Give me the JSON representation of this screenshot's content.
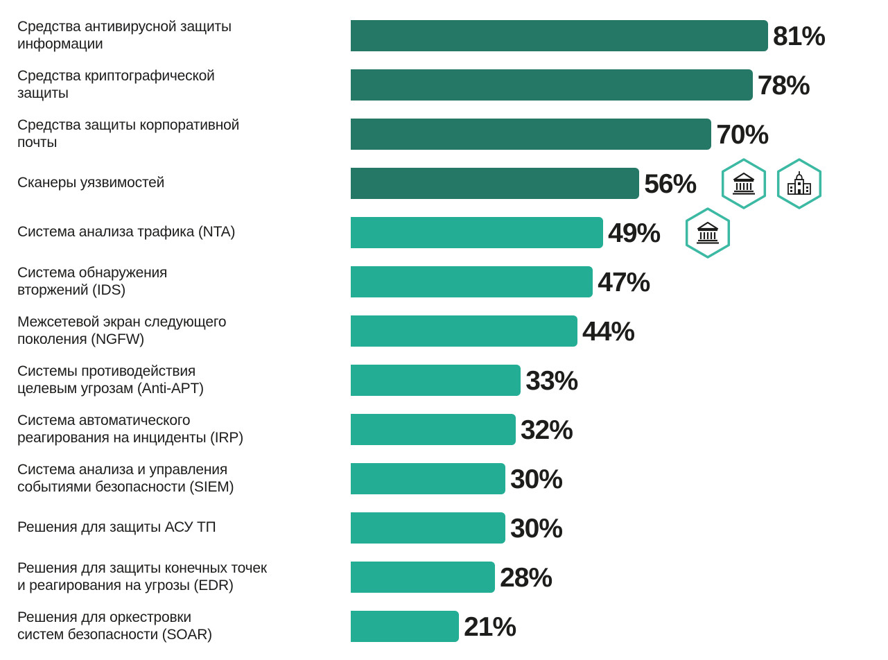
{
  "chart_data": {
    "type": "bar",
    "orientation": "horizontal",
    "title": "",
    "xlabel": "",
    "ylabel": "",
    "xlim": [
      0,
      100
    ],
    "grid": false,
    "categories": [
      "Средства антивирусной защиты\nинформации",
      "Средства криптографической\nзащиты",
      "Средства защиты корпоративной\nпочты",
      "Сканеры уязвимостей",
      "Система анализа трафика (NTA)",
      "Система обнаружения\nвторжений (IDS)",
      "Межсетевой экран следующего\nпоколения (NGFW)",
      "Системы противодействия\nцелевым угрозам (Anti-APT)",
      "Система автоматического\nреагирования на инциденты (IRP)",
      "Система анализа и управления\nсобытиями безопасности (SIEM)",
      "Решения для защиты АСУ ТП",
      "Решения для защиты конечных точек\nи реагирования на угрозы (EDR)",
      "Решения для оркестровки\nсистем безопасности (SOAR)"
    ],
    "values": [
      81,
      78,
      70,
      56,
      49,
      47,
      44,
      33,
      32,
      30,
      30,
      28,
      21
    ],
    "value_labels": [
      "81%",
      "78%",
      "70%",
      "56%",
      "49%",
      "47%",
      "44%",
      "33%",
      "32%",
      "30%",
      "30%",
      "28%",
      "21%"
    ],
    "bar_colors": [
      "#267866",
      "#267866",
      "#267866",
      "#267866",
      "#23ad95",
      "#23ad95",
      "#23ad95",
      "#23ad95",
      "#23ad95",
      "#23ad95",
      "#23ad95",
      "#23ad95",
      "#23ad95"
    ],
    "badges": [
      {
        "category_index": 3,
        "icons": [
          "bank-icon",
          "government-building-icon"
        ]
      },
      {
        "category_index": 4,
        "icons": [
          "bank-icon"
        ]
      }
    ],
    "badge_color": "#3bb9a3"
  }
}
